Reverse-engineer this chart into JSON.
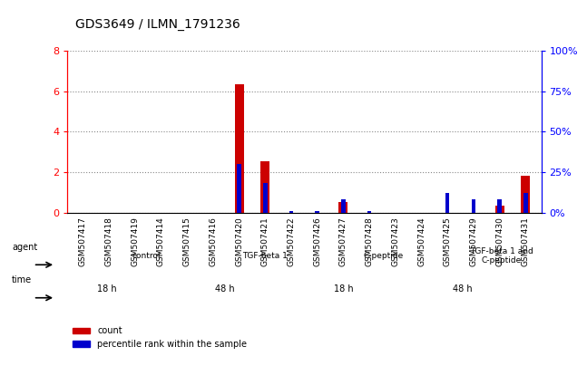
{
  "title": "GDS3649 / ILMN_1791236",
  "samples": [
    "GSM507417",
    "GSM507418",
    "GSM507419",
    "GSM507414",
    "GSM507415",
    "GSM507416",
    "GSM507420",
    "GSM507421",
    "GSM507422",
    "GSM507426",
    "GSM507427",
    "GSM507428",
    "GSM507423",
    "GSM507424",
    "GSM507425",
    "GSM507429",
    "GSM507430",
    "GSM507431"
  ],
  "count_values": [
    0,
    0,
    0,
    0,
    0,
    0,
    6.35,
    2.55,
    0,
    0,
    0.5,
    0,
    0,
    0,
    0,
    0,
    0.35,
    1.8
  ],
  "percentile_values": [
    0,
    0,
    0,
    0,
    0,
    0,
    0.3,
    0.18,
    0.01,
    0.01,
    0.08,
    0.01,
    0,
    0,
    0.12,
    0.08,
    0.08,
    0.12
  ],
  "ylim_left": [
    0,
    8
  ],
  "ylim_right": [
    0,
    1.0
  ],
  "yticks_left": [
    0,
    2,
    4,
    6,
    8
  ],
  "yticks_right": [
    0,
    0.25,
    0.5,
    0.75,
    1.0
  ],
  "ytick_labels_left": [
    "0",
    "2",
    "4",
    "6",
    "8"
  ],
  "ytick_labels_right": [
    "0%",
    "25%",
    "50%",
    "75%",
    "100%"
  ],
  "bar_color_count": "#cc0000",
  "bar_color_percentile": "#0000cc",
  "bar_width": 0.35,
  "agent_groups": [
    {
      "label": "control",
      "start": 0,
      "end": 6,
      "color": "#ccffcc"
    },
    {
      "label": "TGF-beta 1",
      "start": 6,
      "end": 9,
      "color": "#99ff99"
    },
    {
      "label": "C-peptide",
      "start": 9,
      "end": 15,
      "color": "#66dd66"
    },
    {
      "label": "TGF-beta 1 and\nC-peptide",
      "start": 15,
      "end": 18,
      "color": "#55cc55"
    }
  ],
  "time_groups": [
    {
      "label": "18 h",
      "start": 0,
      "end": 3,
      "color": "#ffaaff"
    },
    {
      "label": "48 h",
      "start": 3,
      "end": 9,
      "color": "#ee66ee"
    },
    {
      "label": "18 h",
      "start": 9,
      "end": 12,
      "color": "#ffaaff"
    },
    {
      "label": "48 h",
      "start": 12,
      "end": 18,
      "color": "#ee66ee"
    }
  ],
  "background_color": "#ffffff",
  "plot_bg_color": "#ffffff",
  "grid_color": "#888888",
  "agent_label": "agent",
  "time_label": "time",
  "legend_count_label": "count",
  "legend_percentile_label": "percentile rank within the sample"
}
